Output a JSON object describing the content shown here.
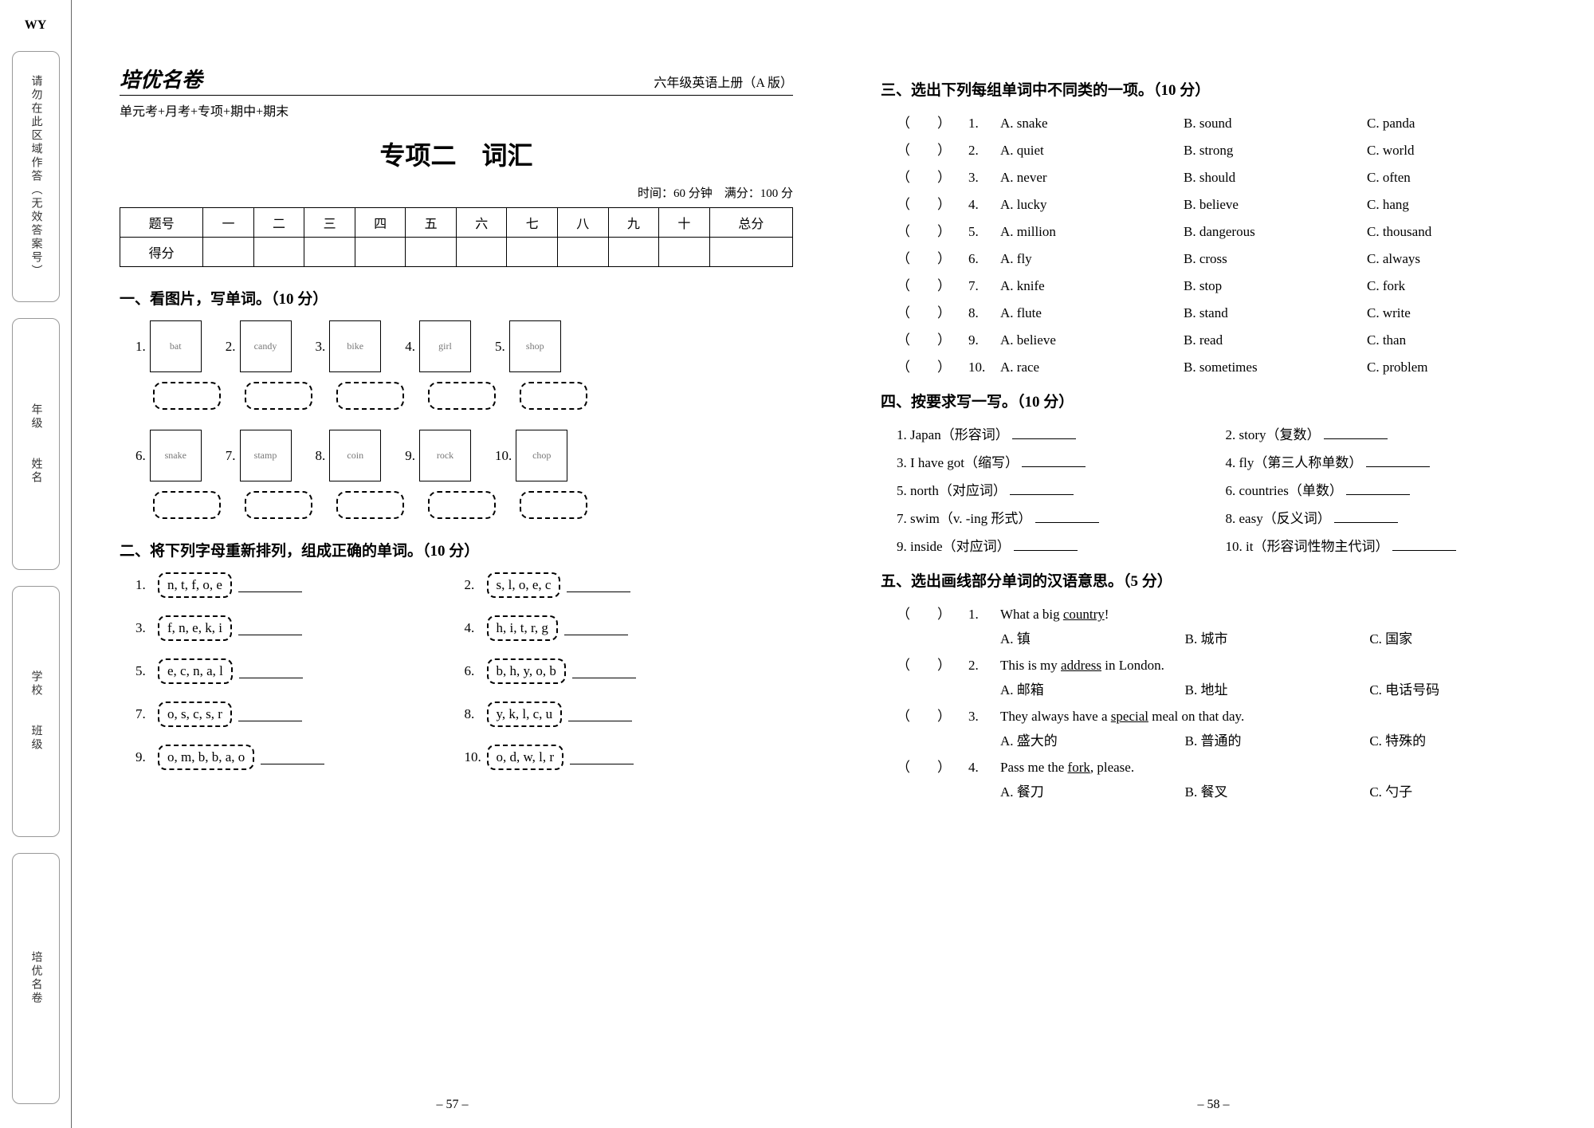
{
  "left_margin": {
    "wy": "WY",
    "box1_text": "请勿在此区域作答（无效答案号）",
    "box2_labels": [
      "年级",
      "姓名"
    ],
    "box3_labels": [
      "学校",
      "班级"
    ],
    "box4_brand": "培优名卷"
  },
  "header": {
    "brand": "培优名卷",
    "grade": "六年级英语上册（A 版）",
    "subtitle": "单元考+月考+专项+期中+期末"
  },
  "title": "专项二　词汇",
  "time_score": "时间：60 分钟　满分：100 分",
  "score_table": {
    "header": [
      "题号",
      "一",
      "二",
      "三",
      "四",
      "五",
      "六",
      "七",
      "八",
      "九",
      "十",
      "总分"
    ],
    "row_label": "得分"
  },
  "sec1": {
    "title": "一、看图片，写单词。（10 分）",
    "imgs1": [
      "1.",
      "2.",
      "3.",
      "4.",
      "5."
    ],
    "imgs2": [
      "6.",
      "7.",
      "8.",
      "9.",
      "10."
    ],
    "img_hints1": [
      "bat",
      "candy",
      "bike",
      "girl",
      "shop"
    ],
    "img_hints2": [
      "snake",
      "stamp",
      "coin",
      "rock",
      "chop"
    ]
  },
  "sec2": {
    "title": "二、将下列字母重新排列，组成正确的单词。（10 分）",
    "items": [
      {
        "n": "1.",
        "l": "n, t, f, o, e"
      },
      {
        "n": "2.",
        "l": "s, l, o, e, c"
      },
      {
        "n": "3.",
        "l": "f, n, e, k, i"
      },
      {
        "n": "4.",
        "l": "h, i, t, r, g"
      },
      {
        "n": "5.",
        "l": "e, c, n, a, l"
      },
      {
        "n": "6.",
        "l": "b, h, y, o, b"
      },
      {
        "n": "7.",
        "l": "o, s, c, s, r"
      },
      {
        "n": "8.",
        "l": "y, k, l, c, u"
      },
      {
        "n": "9.",
        "l": "o, m, b, b, a, o"
      },
      {
        "n": "10.",
        "l": "o, d, w, l, r"
      }
    ]
  },
  "sec3": {
    "title": "三、选出下列每组单词中不同类的一项。（10 分）",
    "rows": [
      {
        "n": "1.",
        "a": "A. snake",
        "b": "B. sound",
        "c": "C. panda"
      },
      {
        "n": "2.",
        "a": "A. quiet",
        "b": "B. strong",
        "c": "C. world"
      },
      {
        "n": "3.",
        "a": "A. never",
        "b": "B. should",
        "c": "C. often"
      },
      {
        "n": "4.",
        "a": "A. lucky",
        "b": "B. believe",
        "c": "C. hang"
      },
      {
        "n": "5.",
        "a": "A. million",
        "b": "B. dangerous",
        "c": "C. thousand"
      },
      {
        "n": "6.",
        "a": "A. fly",
        "b": "B. cross",
        "c": "C. always"
      },
      {
        "n": "7.",
        "a": "A. knife",
        "b": "B. stop",
        "c": "C. fork"
      },
      {
        "n": "8.",
        "a": "A. flute",
        "b": "B. stand",
        "c": "C. write"
      },
      {
        "n": "9.",
        "a": "A. believe",
        "b": "B. read",
        "c": "C. than"
      },
      {
        "n": "10.",
        "a": "A. race",
        "b": "B. sometimes",
        "c": "C. problem"
      }
    ]
  },
  "sec4": {
    "title": "四、按要求写一写。（10 分）",
    "rows": [
      {
        "l": "1. Japan（形容词）",
        "r": "2. story（复数）"
      },
      {
        "l": "3. I have got（缩写）",
        "r": "4. fly（第三人称单数）"
      },
      {
        "l": "5. north（对应词）",
        "r": "6. countries（单数）"
      },
      {
        "l": "7. swim（v. -ing 形式）",
        "r": "8. easy（反义词）"
      },
      {
        "l": "9. inside（对应词）",
        "r": "10. it（形容词性物主代词）"
      }
    ]
  },
  "sec5": {
    "title": "五、选出画线部分单词的汉语意思。（5 分）",
    "rows": [
      {
        "n": "1.",
        "q_pre": "What a big ",
        "q_u": "country",
        "q_post": "!",
        "a": "A. 镇",
        "b": "B. 城市",
        "c": "C. 国家"
      },
      {
        "n": "2.",
        "q_pre": "This is my ",
        "q_u": "address",
        "q_post": " in London.",
        "a": "A. 邮箱",
        "b": "B. 地址",
        "c": "C. 电话号码"
      },
      {
        "n": "3.",
        "q_pre": "They always have a ",
        "q_u": "special",
        "q_post": " meal on that day.",
        "a": "A. 盛大的",
        "b": "B. 普通的",
        "c": "C. 特殊的"
      },
      {
        "n": "4.",
        "q_pre": "Pass me the ",
        "q_u": "fork",
        "q_post": ", please.",
        "a": "A. 餐刀",
        "b": "B. 餐叉",
        "c": "C. 勺子"
      }
    ]
  },
  "page_nums": {
    "left": "– 57 –",
    "right": "– 58 –"
  }
}
